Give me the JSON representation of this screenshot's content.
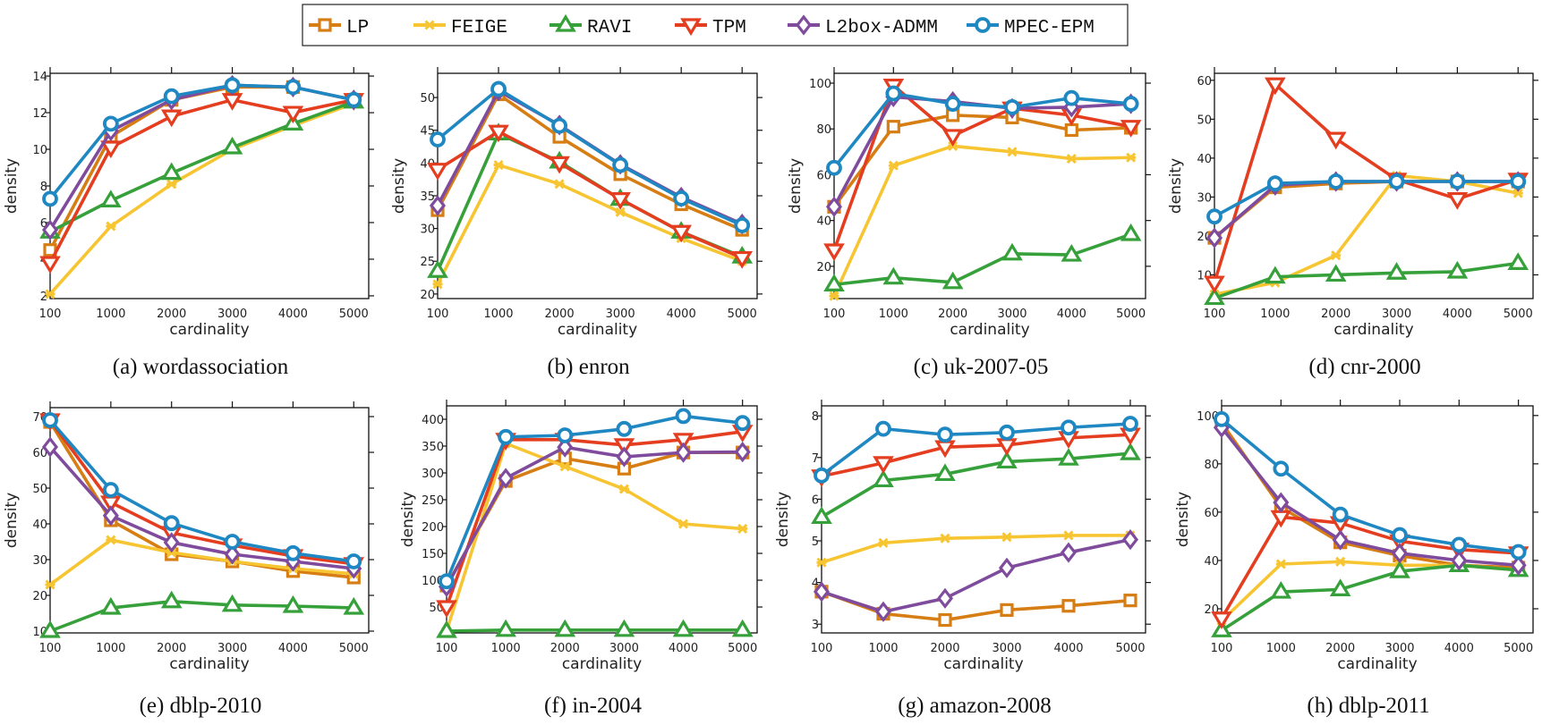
{
  "chart_data": {
    "type": "line",
    "legend": {
      "placement": "top-center",
      "entries": [
        "LP",
        "FEIGE",
        "RAVI",
        "TPM",
        "L2box-ADMM",
        "MPEC-EPM"
      ]
    },
    "series_colors": [
      "#d67d14",
      "#f7c531",
      "#36a03a",
      "#e43d1f",
      "#7f4b9d",
      "#1f88c2"
    ],
    "series_markers": [
      "square",
      "x",
      "triangle-up",
      "triangle-down",
      "diamond",
      "circle"
    ],
    "panels": [
      {
        "title": "(a) wordassociation",
        "xlabel": "cardinality",
        "ylabel": "density",
        "categories": [
          "100",
          "1000",
          "2000",
          "3000",
          "4000",
          "5000"
        ],
        "ylim": [
          1.85,
          14.15
        ],
        "yticks": [
          2,
          4,
          6,
          8,
          10,
          12,
          14
        ],
        "series": [
          {
            "name": "LP",
            "values": [
              4.5,
              10.7,
              12.7,
              13.4,
              13.4,
              12.7
            ]
          },
          {
            "name": "FEIGE",
            "values": [
              2.1,
              5.8,
              8.1,
              10.0,
              11.3,
              12.5
            ]
          },
          {
            "name": "RAVI",
            "values": [
              5.5,
              7.2,
              8.7,
              10.1,
              11.4,
              12.6
            ]
          },
          {
            "name": "TPM",
            "values": [
              3.8,
              10.1,
              11.8,
              12.7,
              12.0,
              12.7
            ]
          },
          {
            "name": "L2box-ADMM",
            "values": [
              5.6,
              11.0,
              12.7,
              13.5,
              13.4,
              12.7
            ]
          },
          {
            "name": "MPEC-EPM",
            "values": [
              7.3,
              11.4,
              12.9,
              13.5,
              13.4,
              12.7
            ]
          }
        ]
      },
      {
        "title": "(b) enron",
        "xlabel": "cardinality",
        "ylabel": "density",
        "categories": [
          "100",
          "1000",
          "2000",
          "3000",
          "4000",
          "5000"
        ],
        "ylim": [
          19.3,
          53.7
        ],
        "yticks": [
          20,
          25,
          30,
          35,
          40,
          45,
          50
        ],
        "series": [
          {
            "name": "LP",
            "values": [
              32.8,
              50.5,
              44.0,
              38.3,
              33.7,
              29.8
            ]
          },
          {
            "name": "FEIGE",
            "values": [
              21.5,
              39.7,
              36.8,
              32.5,
              28.5,
              25.0
            ]
          },
          {
            "name": "RAVI",
            "values": [
              23.5,
              44.5,
              40.2,
              34.5,
              29.5,
              25.7
            ]
          },
          {
            "name": "TPM",
            "values": [
              39.0,
              44.8,
              40.0,
              34.5,
              29.5,
              25.5
            ]
          },
          {
            "name": "L2box-ADMM",
            "values": [
              33.5,
              51.0,
              45.8,
              39.8,
              34.8,
              30.7
            ]
          },
          {
            "name": "MPEC-EPM",
            "values": [
              43.6,
              51.3,
              45.7,
              39.7,
              34.6,
              30.5
            ]
          }
        ]
      },
      {
        "title": "(c) uk-2007-05",
        "xlabel": "cardinality",
        "ylabel": "density",
        "categories": [
          "100",
          "1000",
          "2000",
          "3000",
          "4000",
          "5000"
        ],
        "ylim": [
          5.9,
          104.3
        ],
        "yticks": [
          20,
          40,
          60,
          80,
          100
        ],
        "series": [
          {
            "name": "LP",
            "values": [
              46,
              81,
              86,
              85,
              79.5,
              80.5
            ]
          },
          {
            "name": "FEIGE",
            "values": [
              7,
              64,
              72.5,
              70,
              67,
              67.5
            ]
          },
          {
            "name": "RAVI",
            "values": [
              12,
              15,
              13,
              25.5,
              25,
              34
            ]
          },
          {
            "name": "TPM",
            "values": [
              27,
              99,
              77,
              89,
              86,
              81
            ]
          },
          {
            "name": "L2box-ADMM",
            "values": [
              46,
              94,
              92,
              89,
              89.5,
              91
            ]
          },
          {
            "name": "MPEC-EPM",
            "values": [
              63,
              95.5,
              91,
              89.5,
              93.5,
              91
            ]
          }
        ]
      },
      {
        "title": "(d) cnr-2000",
        "xlabel": "cardinality",
        "ylabel": "density",
        "categories": [
          "100",
          "1000",
          "2000",
          "3000",
          "4000",
          "5000"
        ],
        "ylim": [
          3.9,
          61.8
        ],
        "yticks": [
          10,
          20,
          30,
          40,
          50,
          60
        ],
        "series": [
          {
            "name": "LP",
            "values": [
              19.5,
              32.5,
              33.5,
              34,
              34,
              34
            ]
          },
          {
            "name": "FEIGE",
            "values": [
              5,
              8,
              15,
              35.5,
              34,
              31
            ]
          },
          {
            "name": "RAVI",
            "values": [
              4,
              9.5,
              10,
              10.5,
              10.8,
              13
            ]
          },
          {
            "name": "TPM",
            "values": [
              8,
              59,
              45,
              34.5,
              29.5,
              34.5
            ]
          },
          {
            "name": "L2box-ADMM",
            "values": [
              19.5,
              33,
              34,
              34,
              34,
              34
            ]
          },
          {
            "name": "MPEC-EPM",
            "values": [
              25,
              33.5,
              34,
              34,
              34,
              34
            ]
          }
        ]
      },
      {
        "title": "(e) dblp-2010",
        "xlabel": "cardinality",
        "ylabel": "density",
        "categories": [
          "100",
          "1000",
          "2000",
          "3000",
          "4000",
          "5000"
        ],
        "ylim": [
          9.5,
          72.5
        ],
        "yticks": [
          10,
          20,
          30,
          40,
          50,
          60,
          70
        ],
        "series": [
          {
            "name": "LP",
            "values": [
              68.5,
              41,
              31.5,
              29.5,
              26.8,
              25
            ]
          },
          {
            "name": "FEIGE",
            "values": [
              23,
              35.5,
              32,
              29.5,
              27.5,
              26
            ]
          },
          {
            "name": "RAVI",
            "values": [
              10,
              16.5,
              18.3,
              17.3,
              17,
              16.5
            ]
          },
          {
            "name": "TPM",
            "values": [
              69,
              46,
              37.5,
              34,
              31,
              28.8
            ]
          },
          {
            "name": "L2box-ADMM",
            "values": [
              61.5,
              42.3,
              34.8,
              31.5,
              29.5,
              27.5
            ]
          },
          {
            "name": "MPEC-EPM",
            "values": [
              69,
              49.5,
              40.2,
              35,
              31.8,
              29.5
            ]
          }
        ]
      },
      {
        "title": "(f) in-2004",
        "xlabel": "cardinality",
        "ylabel": "density",
        "categories": [
          "100",
          "1000",
          "2000",
          "3000",
          "4000",
          "5000"
        ],
        "ylim": [
          1.7,
          425
        ],
        "yticks": [
          50,
          100,
          150,
          200,
          250,
          300,
          350,
          400
        ],
        "series": [
          {
            "name": "LP",
            "values": [
              90,
              285,
              327,
              308,
              338,
              338
            ]
          },
          {
            "name": "FEIGE",
            "values": [
              5,
              355,
              312,
              270,
              205,
              196
            ]
          },
          {
            "name": "RAVI",
            "values": [
              5,
              7,
              7,
              7,
              7,
              7
            ]
          },
          {
            "name": "TPM",
            "values": [
              50,
              362,
              362,
              352,
              362,
              377
            ]
          },
          {
            "name": "L2box-ADMM",
            "values": [
              88,
              290,
              348,
              330,
              338,
              339
            ]
          },
          {
            "name": "MPEC-EPM",
            "values": [
              98,
              367,
              370,
              382,
              406,
              393
            ]
          }
        ]
      },
      {
        "title": "(g) amazon-2008",
        "xlabel": "cardinality",
        "ylabel": "density",
        "categories": [
          "100",
          "1000",
          "2000",
          "3000",
          "4000",
          "5000"
        ],
        "ylim": [
          2.79,
          8.24
        ],
        "yticks": [
          3,
          4,
          5,
          6,
          7,
          8
        ],
        "series": [
          {
            "name": "LP",
            "values": [
              3.78,
              3.25,
              3.1,
              3.34,
              3.44,
              3.57
            ]
          },
          {
            "name": "FEIGE",
            "values": [
              4.48,
              4.95,
              5.06,
              5.09,
              5.13,
              5.13
            ]
          },
          {
            "name": "RAVI",
            "values": [
              5.57,
              6.45,
              6.6,
              6.9,
              6.97,
              7.1
            ]
          },
          {
            "name": "TPM",
            "values": [
              6.55,
              6.87,
              7.25,
              7.3,
              7.47,
              7.55
            ]
          },
          {
            "name": "L2box-ADMM",
            "values": [
              3.78,
              3.3,
              3.62,
              4.35,
              4.72,
              5.03
            ]
          },
          {
            "name": "MPEC-EPM",
            "values": [
              6.57,
              7.69,
              7.55,
              7.6,
              7.72,
              7.81
            ]
          }
        ]
      },
      {
        "title": "(h) dblp-2011",
        "xlabel": "cardinality",
        "ylabel": "density",
        "categories": [
          "100",
          "1000",
          "2000",
          "3000",
          "4000",
          "5000"
        ],
        "ylim": [
          10,
          104
        ],
        "yticks": [
          20,
          40,
          60,
          80,
          100
        ],
        "series": [
          {
            "name": "LP",
            "values": [
              97,
              62,
              47.5,
              42,
              38,
              37
            ]
          },
          {
            "name": "FEIGE",
            "values": [
              15,
              38.5,
              39.5,
              38,
              38,
              36
            ]
          },
          {
            "name": "RAVI",
            "values": [
              11,
              27,
              28,
              35.5,
              38,
              36
            ]
          },
          {
            "name": "TPM",
            "values": [
              16,
              58,
              55.5,
              48,
              44.5,
              43
            ]
          },
          {
            "name": "L2box-ADMM",
            "values": [
              95,
              64,
              48.5,
              43,
              40,
              38
            ]
          },
          {
            "name": "MPEC-EPM",
            "values": [
              98.5,
              78,
              59,
              50.5,
              46.5,
              43.5
            ]
          }
        ]
      }
    ]
  }
}
